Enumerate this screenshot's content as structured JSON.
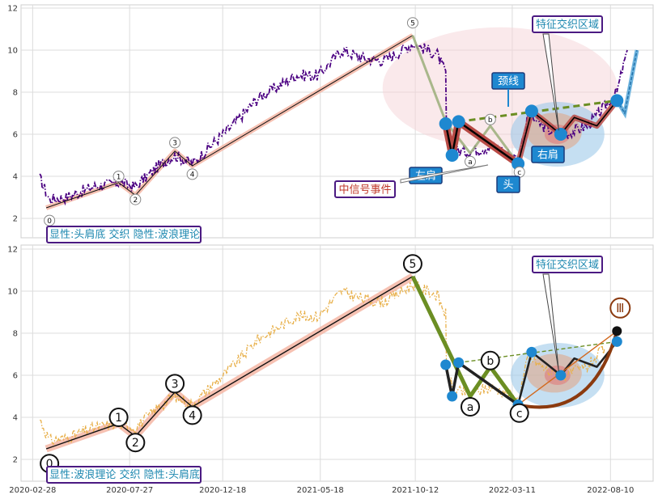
{
  "chart_data": [
    {
      "type": "line",
      "ylim": [
        1,
        12
      ],
      "yticks": [
        2,
        4,
        6,
        8,
        10,
        12
      ],
      "price_path": [
        [
          "2020-03-10",
          3.9
        ],
        [
          "2020-03-25",
          2.9
        ],
        [
          "2020-04-20",
          3.0
        ],
        [
          "2020-06-01",
          3.5
        ],
        [
          "2020-07-10",
          3.7
        ],
        [
          "2020-08-05",
          3.5
        ],
        [
          "2020-09-10",
          4.5
        ],
        [
          "2020-10-05",
          5.0
        ],
        [
          "2020-11-01",
          4.6
        ],
        [
          "2020-12-01",
          5.5
        ],
        [
          "2021-01-05",
          6.5
        ],
        [
          "2021-02-10",
          7.7
        ],
        [
          "2021-03-15",
          8.3
        ],
        [
          "2021-04-10",
          8.8
        ],
        [
          "2021-05-15",
          8.8
        ],
        [
          "2021-06-20",
          10.0
        ],
        [
          "2021-07-25",
          9.6
        ],
        [
          "2021-08-25",
          9.5
        ],
        [
          "2021-10-08",
          10.3
        ],
        [
          "2021-11-15",
          9.8
        ],
        [
          "2021-11-28",
          8.9
        ],
        [
          "2021-11-29",
          6.5
        ],
        [
          "2021-12-10",
          5.2
        ],
        [
          "2022-01-05",
          5.2
        ],
        [
          "2022-02-05",
          5.4
        ],
        [
          "2022-03-01",
          5.2
        ],
        [
          "2022-03-20",
          4.8
        ],
        [
          "2022-04-05",
          6.9
        ],
        [
          "2022-05-05",
          6.2
        ],
        [
          "2022-06-01",
          6.0
        ],
        [
          "2022-07-05",
          6.4
        ],
        [
          "2022-08-01",
          7.3
        ],
        [
          "2022-08-20",
          8.0
        ],
        [
          "2022-09-05",
          10.0
        ]
      ],
      "wave_line": [
        [
          "2020-03-20",
          2.5
        ],
        [
          "2020-07-10",
          3.7
        ],
        [
          "2020-08-05",
          3.1
        ],
        [
          "2020-10-05",
          5.2
        ],
        [
          "2020-11-01",
          4.5
        ],
        [
          "2021-10-08",
          10.7
        ]
      ],
      "wave_labels": [
        {
          "text": "0",
          "x": "2020-03-25",
          "y": 1.9
        },
        {
          "text": "1",
          "x": "2020-07-10",
          "y": 4.0
        },
        {
          "text": "2",
          "x": "2020-08-05",
          "y": 2.9
        },
        {
          "text": "3",
          "x": "2020-10-05",
          "y": 5.6
        },
        {
          "text": "4",
          "x": "2020-11-01",
          "y": 4.1
        },
        {
          "text": "5",
          "x": "2021-10-08",
          "y": 11.3
        }
      ],
      "corrective_wave": [
        [
          "2021-10-08",
          10.7
        ],
        [
          "2021-11-28",
          6.6
        ],
        [
          "2022-01-05",
          5.1
        ],
        [
          "2022-02-05",
          6.4
        ],
        [
          "2022-03-20",
          4.6
        ]
      ],
      "corrective_labels": [
        {
          "text": "a",
          "x": "2022-01-05",
          "y": 4.7
        },
        {
          "text": "b",
          "x": "2022-02-05",
          "y": 6.7
        },
        {
          "text": "c",
          "x": "2022-03-22",
          "y": 4.2
        }
      ],
      "hs_points": [
        [
          "2021-11-28",
          6.5
        ],
        [
          "2021-12-08",
          5.0
        ],
        [
          "2021-12-18",
          6.6
        ],
        [
          "2022-03-20",
          4.6
        ],
        [
          "2022-04-10",
          7.1
        ],
        [
          "2022-05-25",
          6.0
        ],
        [
          "2022-08-20",
          7.6
        ]
      ],
      "hs_thin_line": [
        [
          "2022-03-20",
          4.6
        ],
        [
          "2022-04-10",
          7.1
        ],
        [
          "2022-05-05",
          6.5
        ],
        [
          "2022-05-25",
          6.0
        ],
        [
          "2022-06-15",
          6.8
        ],
        [
          "2022-07-20",
          6.4
        ],
        [
          "2022-08-20",
          7.6
        ]
      ],
      "neckline": [
        [
          "2021-12-18",
          6.6
        ],
        [
          "2022-08-20",
          7.6
        ]
      ],
      "breakout": [
        [
          "2022-08-20",
          7.6
        ],
        [
          "2022-09-01",
          7.0
        ],
        [
          "2022-09-20",
          10.0
        ]
      ],
      "callouts": {
        "left_shoulder": "左肩",
        "head": "头",
        "right_shoulder": "右肩",
        "neckline": "颈线",
        "zone": "特征交织区域",
        "event": "中信号事件"
      },
      "legend_text": "显性:头肩底 交织 隐性:波浪理论"
    },
    {
      "type": "line",
      "ylim": [
        1,
        12
      ],
      "yticks": [
        2,
        4,
        6,
        8,
        10,
        12
      ],
      "xticks": [
        "2020-02-28",
        "2020-07-27",
        "2020-12-18",
        "2021-05-18",
        "2021-10-12",
        "2022-03-11",
        "2022-08-10"
      ],
      "price_path": [
        [
          "2020-03-10",
          3.9
        ],
        [
          "2020-03-25",
          2.9
        ],
        [
          "2020-04-20",
          3.0
        ],
        [
          "2020-06-01",
          3.5
        ],
        [
          "2020-07-10",
          3.7
        ],
        [
          "2020-08-05",
          3.5
        ],
        [
          "2020-09-10",
          4.5
        ],
        [
          "2020-10-05",
          5.0
        ],
        [
          "2020-11-01",
          4.6
        ],
        [
          "2020-12-01",
          5.5
        ],
        [
          "2021-01-05",
          6.5
        ],
        [
          "2021-02-10",
          7.7
        ],
        [
          "2021-03-15",
          8.3
        ],
        [
          "2021-04-10",
          8.8
        ],
        [
          "2021-05-15",
          8.8
        ],
        [
          "2021-06-20",
          10.0
        ],
        [
          "2021-07-25",
          9.6
        ],
        [
          "2021-08-25",
          9.5
        ],
        [
          "2021-10-08",
          10.3
        ],
        [
          "2021-11-15",
          9.8
        ],
        [
          "2021-11-28",
          8.9
        ],
        [
          "2021-11-29",
          6.5
        ],
        [
          "2021-12-10",
          5.2
        ],
        [
          "2022-01-05",
          5.2
        ],
        [
          "2022-02-05",
          5.4
        ],
        [
          "2022-03-01",
          5.2
        ],
        [
          "2022-03-20",
          4.8
        ],
        [
          "2022-04-05",
          6.9
        ],
        [
          "2022-05-05",
          6.2
        ],
        [
          "2022-06-01",
          6.0
        ],
        [
          "2022-07-05",
          6.4
        ],
        [
          "2022-08-01",
          7.3
        ]
      ],
      "wave_line": [
        [
          "2020-03-20",
          2.5
        ],
        [
          "2020-07-10",
          3.7
        ],
        [
          "2020-08-05",
          3.1
        ],
        [
          "2020-10-05",
          5.2
        ],
        [
          "2020-11-01",
          4.5
        ],
        [
          "2021-10-08",
          10.7
        ]
      ],
      "wave_labels": [
        {
          "text": "0",
          "x": "2020-03-25",
          "y": 1.8
        },
        {
          "text": "1",
          "x": "2020-07-10",
          "y": 4.0
        },
        {
          "text": "2",
          "x": "2020-08-05",
          "y": 2.8
        },
        {
          "text": "3",
          "x": "2020-10-05",
          "y": 5.6
        },
        {
          "text": "4",
          "x": "2020-11-01",
          "y": 4.1
        },
        {
          "text": "5",
          "x": "2021-10-08",
          "y": 11.3
        }
      ],
      "corrective_wave": [
        [
          "2021-10-08",
          10.7
        ],
        [
          "2022-01-05",
          5.0
        ],
        [
          "2022-02-05",
          6.4
        ],
        [
          "2022-03-20",
          4.6
        ]
      ],
      "corrective_labels": [
        {
          "text": "a",
          "x": "2022-01-05",
          "y": 4.5
        },
        {
          "text": "b",
          "x": "2022-02-05",
          "y": 6.7
        },
        {
          "text": "c",
          "x": "2022-03-22",
          "y": 4.2
        }
      ],
      "hs_points": [
        [
          "2021-11-28",
          6.5
        ],
        [
          "2021-12-08",
          5.0
        ],
        [
          "2021-12-18",
          6.6
        ],
        [
          "2022-03-20",
          4.6
        ],
        [
          "2022-04-10",
          7.1
        ],
        [
          "2022-05-25",
          6.0
        ],
        [
          "2022-08-20",
          7.6
        ]
      ],
      "hs_thin_line": [
        [
          "2022-03-20",
          4.6
        ],
        [
          "2022-04-10",
          7.1
        ],
        [
          "2022-05-05",
          6.5
        ],
        [
          "2022-05-25",
          6.0
        ],
        [
          "2022-06-15",
          6.8
        ],
        [
          "2022-07-20",
          6.4
        ],
        [
          "2022-08-20",
          7.6
        ]
      ],
      "neckline": [
        [
          "2021-12-18",
          6.6
        ],
        [
          "2022-08-20",
          7.6
        ]
      ],
      "wave3_target": [
        [
          "2022-03-20",
          4.6
        ],
        [
          "2022-08-20",
          8.1
        ]
      ],
      "wave3_label": {
        "text": "Ⅲ",
        "x": "2022-08-25",
        "y": 9.2
      },
      "callouts": {
        "zone": "特征交织区域"
      },
      "legend_text": "显性:波浪理论 交织 隐性:头肩底"
    }
  ]
}
